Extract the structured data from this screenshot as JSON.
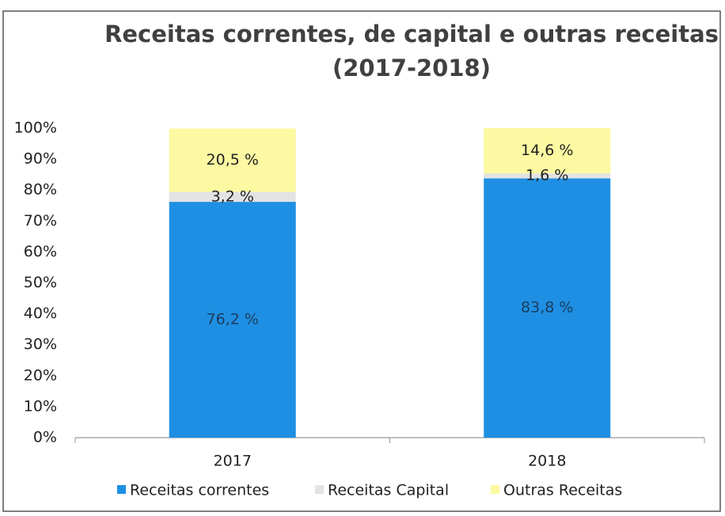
{
  "chart_data": {
    "type": "stacked_bar",
    "title": [
      "Receitas correntes, de capital e outras receitas",
      "(2017-2018)"
    ],
    "categories": [
      "2017",
      "2018"
    ],
    "series": [
      {
        "name": "Receitas correntes",
        "color": "#1e8fe3",
        "values": [
          76.2,
          83.8
        ],
        "value_labels": [
          "76,2 %",
          "83,8 %"
        ]
      },
      {
        "name": "Receitas Capital",
        "color": "#e3e3e3",
        "values": [
          3.2,
          1.6
        ],
        "value_labels": [
          "3,2 %",
          "1,6 %"
        ]
      },
      {
        "name": "Outras Receitas",
        "color": "#fcf9a2",
        "values": [
          20.5,
          14.6
        ],
        "value_labels": [
          "20,5 %",
          "14,6 %"
        ]
      }
    ],
    "ylim": [
      0,
      100
    ],
    "yticks": [
      {
        "value": 0,
        "label": "0%"
      },
      {
        "value": 10,
        "label": "10%"
      },
      {
        "value": 20,
        "label": "20%"
      },
      {
        "value": 30,
        "label": "30%"
      },
      {
        "value": 40,
        "label": "40%"
      },
      {
        "value": 50,
        "label": "50%"
      },
      {
        "value": 60,
        "label": "60%"
      },
      {
        "value": 70,
        "label": "70%"
      },
      {
        "value": 80,
        "label": "80%"
      },
      {
        "value": 90,
        "label": "90%"
      },
      {
        "value": 100,
        "label": "100%"
      }
    ],
    "grid": false
  }
}
